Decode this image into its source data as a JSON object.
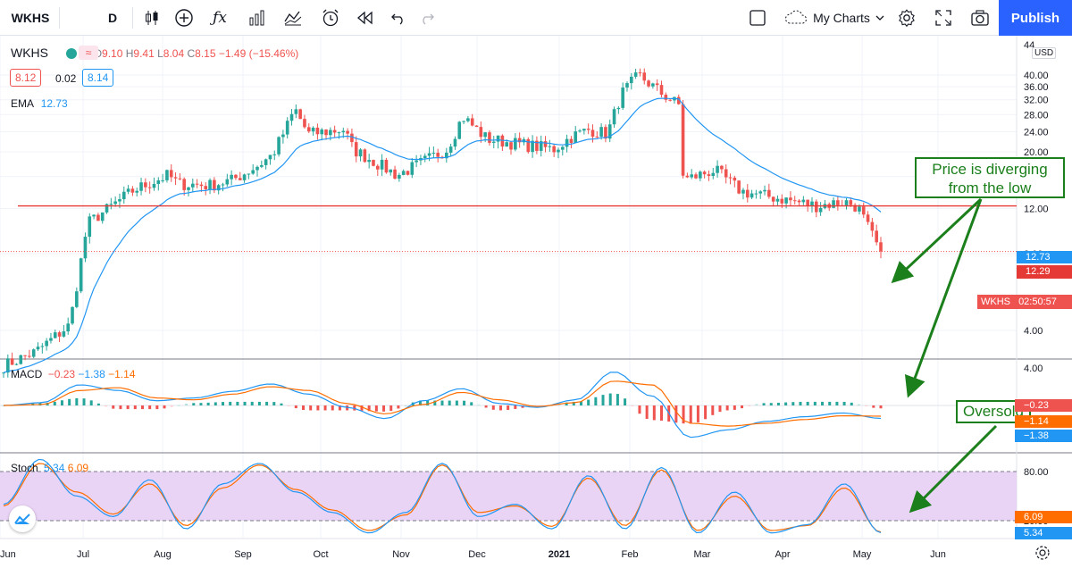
{
  "toolbar": {
    "symbol": "WKHS",
    "interval": "D",
    "publish_label": "Publish",
    "layout_label": "My Charts",
    "icons": [
      "candles-icon",
      "add-compare-icon",
      "indicators-icon",
      "financials-icon",
      "templates-icon",
      "alert-icon",
      "replay-icon",
      "undo-icon",
      "redo-icon",
      "layout-icon",
      "settings-icon",
      "fullscreen-icon",
      "snapshot-icon"
    ]
  },
  "legend": {
    "symbol": "WKHS",
    "ohlc": {
      "o_label": "O",
      "o": "9.10",
      "h_label": "H",
      "h": "9.41",
      "l_label": "L",
      "l": "8.04",
      "c_label": "C",
      "c": "8.15",
      "change": "−1.49 (−15.46%)"
    },
    "bid": "8.12",
    "spread": "0.02",
    "ask": "8.14",
    "ema_label": "EMA",
    "ema_value": "12.73",
    "macd_label": "MACD",
    "macd_values": [
      "−0.23",
      "−1.38",
      "−1.14"
    ],
    "stoch_label": "Stoch",
    "stoch_values": [
      "5.34",
      "6.09"
    ]
  },
  "annotations": {
    "diverging": "Price is diverging from the low",
    "oversold": "Oversold"
  },
  "price_labels": {
    "currency": "USD",
    "ema": "12.73",
    "hline": "12.29",
    "last": "WKHS",
    "countdown": "02:50:57",
    "macd_hist": "−0.23",
    "macd_line": "−1.38",
    "macd_signal": "−1.14",
    "stoch_k": "5.34",
    "stoch_d": "6.09"
  },
  "colors": {
    "up": "#26a69a",
    "down": "#ef5350",
    "ema": "#2196f3",
    "hline": "#e53935",
    "macd": "#2196f3",
    "signal": "#ff6d00",
    "stoch_k": "#2196f3",
    "stoch_d": "#ff6d00",
    "stoch_band": "#e6ccf5",
    "annotation": "#1b7f1b",
    "publish": "#2962ff"
  },
  "chart_data": [
    {
      "type": "candlestick",
      "title": "WKHS",
      "price_scale": "log",
      "price_ticks": [
        4.0,
        8.0,
        12.0,
        16.0,
        20.0,
        24.0,
        28.0,
        32.0,
        36.0,
        40.0
      ],
      "y_axis_top_label": "44",
      "time_ticks": [
        "Jun",
        "Jul",
        "Aug",
        "Sep",
        "Oct",
        "Nov",
        "Dec",
        "2021",
        "Feb",
        "Mar",
        "Apr",
        "May",
        "Jun"
      ],
      "close_path": [
        [
          "Jun",
          2.9
        ],
        [
          "Jun",
          3.3
        ],
        [
          "Jun",
          4.2
        ],
        [
          "Jul",
          10.5
        ],
        [
          "Jul",
          16.2
        ],
        [
          "Jul",
          14.2
        ],
        [
          "Aug",
          15.0
        ],
        [
          "Aug",
          14.8
        ],
        [
          "Aug",
          15.5
        ],
        [
          "Aug",
          17.8
        ],
        [
          "Sep",
          19.5
        ],
        [
          "Sep",
          25.5
        ],
        [
          "Sep",
          29.5
        ],
        [
          "Oct",
          23.5
        ],
        [
          "Oct",
          24.5
        ],
        [
          "Oct",
          20.5
        ],
        [
          "Nov",
          16.2
        ],
        [
          "Nov",
          18.0
        ],
        [
          "Nov",
          20.5
        ],
        [
          "Nov",
          27.5
        ],
        [
          "Dec",
          22.5
        ],
        [
          "Dec",
          21.5
        ],
        [
          "Dec",
          20.5
        ],
        [
          "2021",
          23.0
        ],
        [
          "2021",
          24.5
        ],
        [
          "2021",
          23.5
        ],
        [
          "Feb",
          33.5
        ],
        [
          "Feb",
          40.0
        ],
        [
          "Feb",
          34.0
        ],
        [
          "Feb",
          30.5
        ],
        [
          "Mar",
          15.5
        ],
        [
          "Mar",
          17.0
        ],
        [
          "Mar",
          14.0
        ],
        [
          "Apr",
          13.0
        ],
        [
          "Apr",
          12.3
        ],
        [
          "Apr",
          12.8
        ],
        [
          "May",
          12.2
        ],
        [
          "May",
          8.15
        ]
      ],
      "ema_value": 12.73,
      "horizontal_line": 12.29,
      "last_close": 8.15
    },
    {
      "type": "line",
      "title": "MACD",
      "y_ticks": [
        4.0
      ],
      "series": [
        {
          "name": "MACD",
          "values": [
            0,
            0.3,
            2.2,
            1.6,
            0.5,
            0.8,
            1.5,
            2.3,
            1.2,
            -0.2,
            -1.4,
            0.5,
            1.8,
            0.2,
            -0.2,
            0.6,
            3.6,
            1.0,
            -3.4,
            -2.6,
            -1.7,
            -1.2,
            -0.8,
            -1.38
          ]
        },
        {
          "name": "Signal",
          "values": [
            0,
            0.1,
            1.6,
            1.9,
            0.8,
            0.6,
            1.2,
            2.0,
            1.6,
            0.2,
            -0.9,
            0.1,
            1.4,
            0.6,
            -0.1,
            0.3,
            2.6,
            2.2,
            -1.9,
            -2.2,
            -1.9,
            -1.5,
            -1.1,
            -1.14
          ]
        }
      ],
      "histogram_last": -0.23
    },
    {
      "type": "line",
      "title": "Stoch",
      "y_ticks": [
        80.0,
        20.0
      ],
      "bands": [
        20,
        80
      ],
      "series": [
        {
          "name": "%K",
          "values": [
            40,
            95,
            50,
            25,
            70,
            10,
            65,
            90,
            55,
            30,
            5,
            30,
            90,
            25,
            40,
            10,
            75,
            10,
            85,
            5,
            55,
            5,
            15,
            65,
            5.34
          ]
        },
        {
          "name": "%D",
          "values": [
            38,
            90,
            55,
            28,
            65,
            14,
            60,
            88,
            58,
            33,
            8,
            27,
            88,
            30,
            38,
            13,
            72,
            14,
            82,
            8,
            50,
            8,
            14,
            60,
            6.09
          ]
        }
      ]
    }
  ]
}
